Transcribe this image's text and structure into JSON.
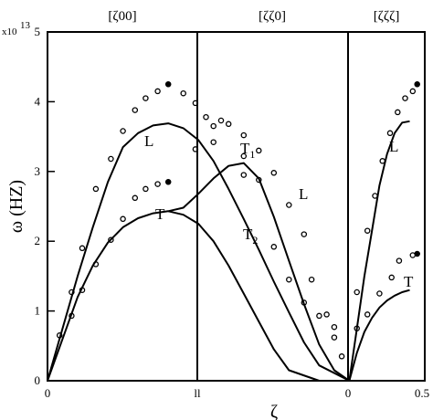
{
  "chart_data": {
    "type": "line",
    "title": "",
    "xlabel": "ζ",
    "ylabel": "ω (HZ)",
    "y_multiplier": {
      "base": "x10",
      "exponent": "13"
    },
    "ylim": [
      0,
      5
    ],
    "yticks": [
      "0",
      "1",
      "2",
      "3",
      "4",
      "5"
    ],
    "segments": [
      {
        "name": "[ζ00]",
        "x_start_label": "0",
        "x_end_label": "ll"
      },
      {
        "name": "[ζζ0]",
        "x_start_label": "ll",
        "x_end_label": "0"
      },
      {
        "name": "[ζζζ]",
        "x_start_label": "0",
        "x_end_label": "0.5"
      }
    ],
    "grid": false,
    "series": [
      {
        "style": "line",
        "points": [
          [
            0,
            0
          ],
          [
            0.1,
            0.75
          ],
          [
            0.2,
            1.5
          ],
          [
            0.3,
            2.2
          ],
          [
            0.4,
            2.85
          ],
          [
            0.5,
            3.35
          ],
          [
            0.6,
            3.55
          ],
          [
            0.7,
            3.66
          ],
          [
            0.8,
            3.69
          ],
          [
            0.9,
            3.62
          ],
          [
            1.0,
            3.45
          ],
          [
            1.1,
            3.15
          ],
          [
            1.2,
            2.75
          ],
          [
            1.3,
            2.32
          ],
          [
            1.4,
            1.88
          ],
          [
            1.5,
            1.42
          ],
          [
            1.6,
            0.98
          ],
          [
            1.7,
            0.55
          ],
          [
            1.8,
            0.22
          ],
          [
            2.0,
            0
          ],
          [
            2.0,
            0
          ],
          [
            2.05,
            0.75
          ],
          [
            2.1,
            1.5
          ],
          [
            2.15,
            2.15
          ],
          [
            2.2,
            2.8
          ],
          [
            2.25,
            3.25
          ],
          [
            2.3,
            3.55
          ],
          [
            2.35,
            3.7
          ],
          [
            2.4,
            3.72
          ]
        ]
      },
      {
        "style": "line",
        "points": [
          [
            0,
            0
          ],
          [
            0.1,
            0.6
          ],
          [
            0.2,
            1.2
          ],
          [
            0.3,
            1.65
          ],
          [
            0.4,
            1.98
          ],
          [
            0.5,
            2.2
          ],
          [
            0.6,
            2.33
          ],
          [
            0.7,
            2.4
          ],
          [
            0.8,
            2.43
          ],
          [
            0.9,
            2.48
          ],
          [
            1.0,
            2.68
          ],
          [
            1.1,
            2.9
          ],
          [
            1.2,
            3.08
          ],
          [
            1.3,
            3.12
          ],
          [
            1.4,
            2.9
          ],
          [
            1.5,
            2.35
          ],
          [
            1.6,
            1.72
          ],
          [
            1.7,
            1.1
          ],
          [
            1.8,
            0.52
          ],
          [
            1.9,
            0.15
          ],
          [
            2.0,
            0
          ],
          [
            2.0,
            0
          ],
          [
            2.05,
            0.4
          ],
          [
            2.1,
            0.7
          ],
          [
            2.15,
            0.9
          ],
          [
            2.2,
            1.05
          ],
          [
            2.25,
            1.15
          ],
          [
            2.3,
            1.22
          ],
          [
            2.35,
            1.27
          ],
          [
            2.4,
            1.3
          ]
        ]
      },
      {
        "style": "line",
        "points": [
          [
            0.8,
            2.43
          ],
          [
            0.9,
            2.38
          ],
          [
            1.0,
            2.25
          ],
          [
            1.1,
            2.0
          ],
          [
            1.2,
            1.65
          ],
          [
            1.3,
            1.25
          ],
          [
            1.4,
            0.85
          ],
          [
            1.5,
            0.45
          ],
          [
            1.6,
            0.15
          ],
          [
            1.8,
            0
          ]
        ]
      },
      {
        "style": "markers",
        "points": [
          [
            0.08,
            0.65
          ],
          [
            0.16,
            1.27
          ],
          [
            0.23,
            1.9
          ],
          [
            0.32,
            2.75
          ],
          [
            0.42,
            3.18
          ],
          [
            0.5,
            3.58
          ],
          [
            0.58,
            3.88
          ],
          [
            0.65,
            4.05
          ],
          [
            0.73,
            4.15
          ],
          [
            0.8,
            4.25
          ],
          [
            0.16,
            0.93
          ],
          [
            0.23,
            1.3
          ],
          [
            0.32,
            1.67
          ],
          [
            0.42,
            2.02
          ],
          [
            0.5,
            2.32
          ],
          [
            0.58,
            2.62
          ],
          [
            0.65,
            2.75
          ],
          [
            0.73,
            2.82
          ],
          [
            0.8,
            2.85
          ],
          [
            0.9,
            4.12
          ],
          [
            0.98,
            3.98
          ],
          [
            1.05,
            3.78
          ],
          [
            1.1,
            3.65
          ],
          [
            1.15,
            3.73
          ],
          [
            1.2,
            3.68
          ],
          [
            1.3,
            3.52
          ],
          [
            1.4,
            3.3
          ],
          [
            1.5,
            2.98
          ],
          [
            1.6,
            2.52
          ],
          [
            1.7,
            2.1
          ],
          [
            1.75,
            1.45
          ],
          [
            1.85,
            0.95
          ],
          [
            1.9,
            0.62
          ],
          [
            0.98,
            3.32
          ],
          [
            1.1,
            3.42
          ],
          [
            1.3,
            2.95
          ],
          [
            1.4,
            2.88
          ],
          [
            1.5,
            1.92
          ],
          [
            1.6,
            1.45
          ],
          [
            1.7,
            1.12
          ],
          [
            1.8,
            0.93
          ],
          [
            1.9,
            0.77
          ],
          [
            1.95,
            0.35
          ],
          [
            1.3,
            3.22
          ],
          [
            2.05,
            1.27
          ],
          [
            2.12,
            2.15
          ],
          [
            2.17,
            2.65
          ],
          [
            2.22,
            3.15
          ],
          [
            2.27,
            3.55
          ],
          [
            2.32,
            3.85
          ],
          [
            2.37,
            4.05
          ],
          [
            2.42,
            4.15
          ],
          [
            2.45,
            4.25
          ],
          [
            2.05,
            0.75
          ],
          [
            2.12,
            0.95
          ],
          [
            2.2,
            1.25
          ],
          [
            2.28,
            1.48
          ],
          [
            2.33,
            1.72
          ],
          [
            2.42,
            1.8
          ],
          [
            2.45,
            1.82
          ]
        ]
      }
    ],
    "annotations": [
      {
        "text": "L",
        "sub": ""
      },
      {
        "text": "T",
        "sub": ""
      },
      {
        "text": "T",
        "sub": "1"
      },
      {
        "text": "L",
        "sub": ""
      },
      {
        "text": "T",
        "sub": "2"
      },
      {
        "text": "L",
        "sub": ""
      },
      {
        "text": "T",
        "sub": ""
      }
    ]
  }
}
